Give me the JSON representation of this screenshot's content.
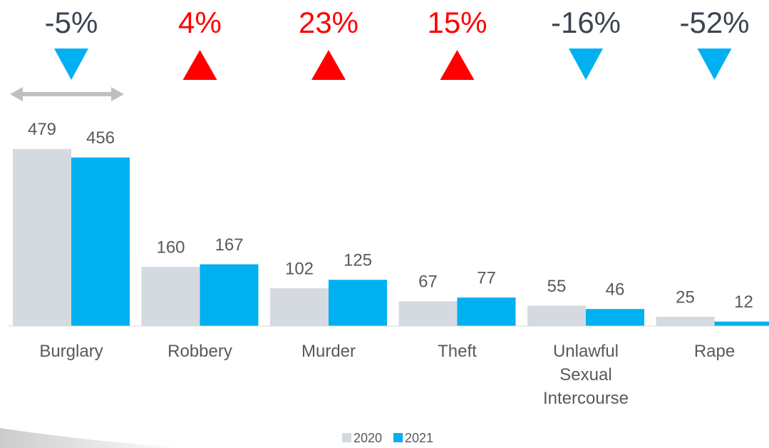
{
  "chart_data": {
    "type": "bar",
    "categories": [
      "Burglary",
      "Robbery",
      "Murder",
      "Theft",
      "Unlawful Sexual Intercourse",
      "Rape"
    ],
    "series": [
      {
        "name": "2020",
        "color": "#d5dae0",
        "values": [
          479,
          160,
          102,
          67,
          55,
          25
        ]
      },
      {
        "name": "2021",
        "color": "#00b0f0",
        "values": [
          456,
          167,
          125,
          77,
          46,
          12
        ]
      }
    ],
    "changes": {
      "values": [
        -5,
        4,
        23,
        15,
        -16,
        -52
      ],
      "value_labels": [
        "-5%",
        "4%",
        "23%",
        "15%",
        "-16%",
        "-52%"
      ],
      "up_color": "#ff0000",
      "down_color": "#00b0f0",
      "up_text_color": "#ff0000",
      "down_text_color": "#3b4452"
    },
    "ylim": [
      0,
      500
    ],
    "legend": "bottom"
  }
}
